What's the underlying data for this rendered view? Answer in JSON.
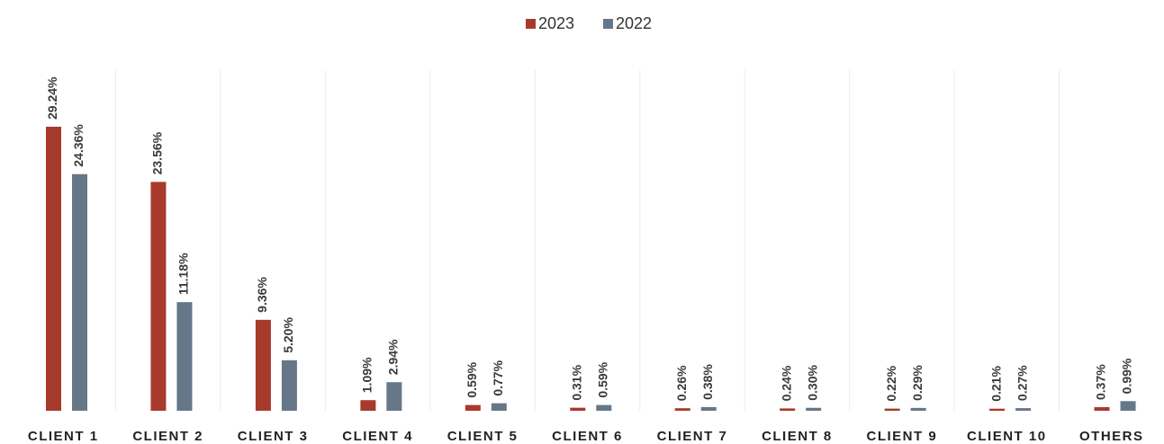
{
  "chart_data": {
    "type": "bar",
    "categories": [
      "CLIENT 1",
      "CLIENT 2",
      "CLIENT 3",
      "CLIENT 4",
      "CLIENT 5",
      "CLIENT 6",
      "CLIENT 7",
      "CLIENT 8",
      "CLIENT 9",
      "CLIENT 10",
      "OTHERS"
    ],
    "series": [
      {
        "name": "2023",
        "color": "#a83a2c",
        "values": [
          29.24,
          23.56,
          9.36,
          1.09,
          0.59,
          0.31,
          0.26,
          0.24,
          0.22,
          0.21,
          0.37
        ],
        "value_labels": [
          "29.24%",
          "23.56%",
          "9.36%",
          "1.09%",
          "0.59%",
          "0.31%",
          "0.26%",
          "0.24%",
          "0.22%",
          "0.21%",
          "0.37%"
        ]
      },
      {
        "name": "2022",
        "color": "#667789",
        "values": [
          24.36,
          11.18,
          5.2,
          2.94,
          0.77,
          0.59,
          0.38,
          0.3,
          0.29,
          0.27,
          0.99
        ],
        "value_labels": [
          "24.36%",
          "11.18%",
          "5.20%",
          "2.94%",
          "0.77%",
          "0.59%",
          "0.38%",
          "0.30%",
          "0.29%",
          "0.27%",
          "0.99%"
        ]
      }
    ],
    "legend": "top"
  }
}
